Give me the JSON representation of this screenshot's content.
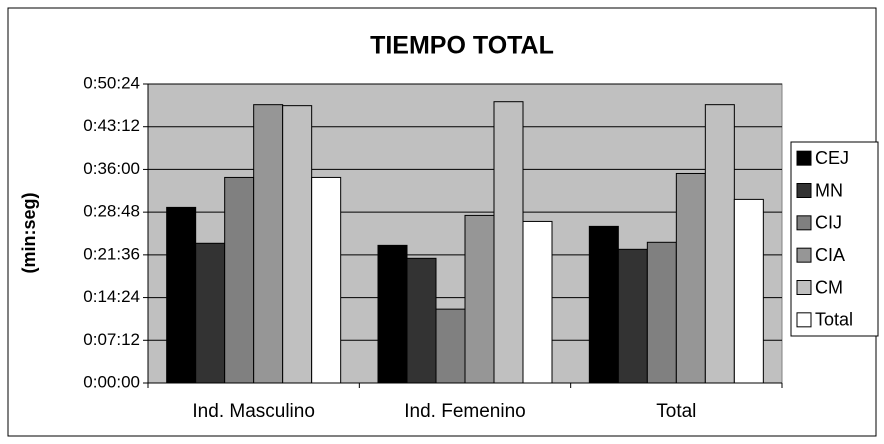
{
  "chart_data": {
    "type": "bar",
    "title": "TIEMPO TOTAL",
    "y_label": "(min:seg)",
    "categories": [
      "Ind. Masculino",
      "Ind. Femenino",
      "Total"
    ],
    "series": [
      {
        "name": "CEJ",
        "color": "#000000",
        "values": [
          1776,
          1392,
          1584
        ]
      },
      {
        "name": "MN",
        "color": "#333333",
        "values": [
          1413,
          1261,
          1352
        ]
      },
      {
        "name": "CIJ",
        "color": "#808080",
        "values": [
          2079,
          747,
          1423
        ]
      },
      {
        "name": "CIA",
        "color": "#969696",
        "values": [
          2815,
          1695,
          2119
        ]
      },
      {
        "name": "CM",
        "color": "#c0c0c0",
        "values": [
          2805,
          2845,
          2815
        ]
      },
      {
        "name": "Total",
        "color": "#ffffff",
        "values": [
          2079,
          1634,
          1857
        ]
      }
    ],
    "ylim": [
      0,
      3024
    ],
    "yticks": [
      {
        "value": 0,
        "label": "0:00:00"
      },
      {
        "value": 432,
        "label": "0:07:12"
      },
      {
        "value": 864,
        "label": "0:14:24"
      },
      {
        "value": 1296,
        "label": "0:21:36"
      },
      {
        "value": 1728,
        "label": "0:28:48"
      },
      {
        "value": 2160,
        "label": "0:36:00"
      },
      {
        "value": 2592,
        "label": "0:43:12"
      },
      {
        "value": 3024,
        "label": "0:50:24"
      }
    ],
    "grid": true,
    "legend": "right"
  }
}
